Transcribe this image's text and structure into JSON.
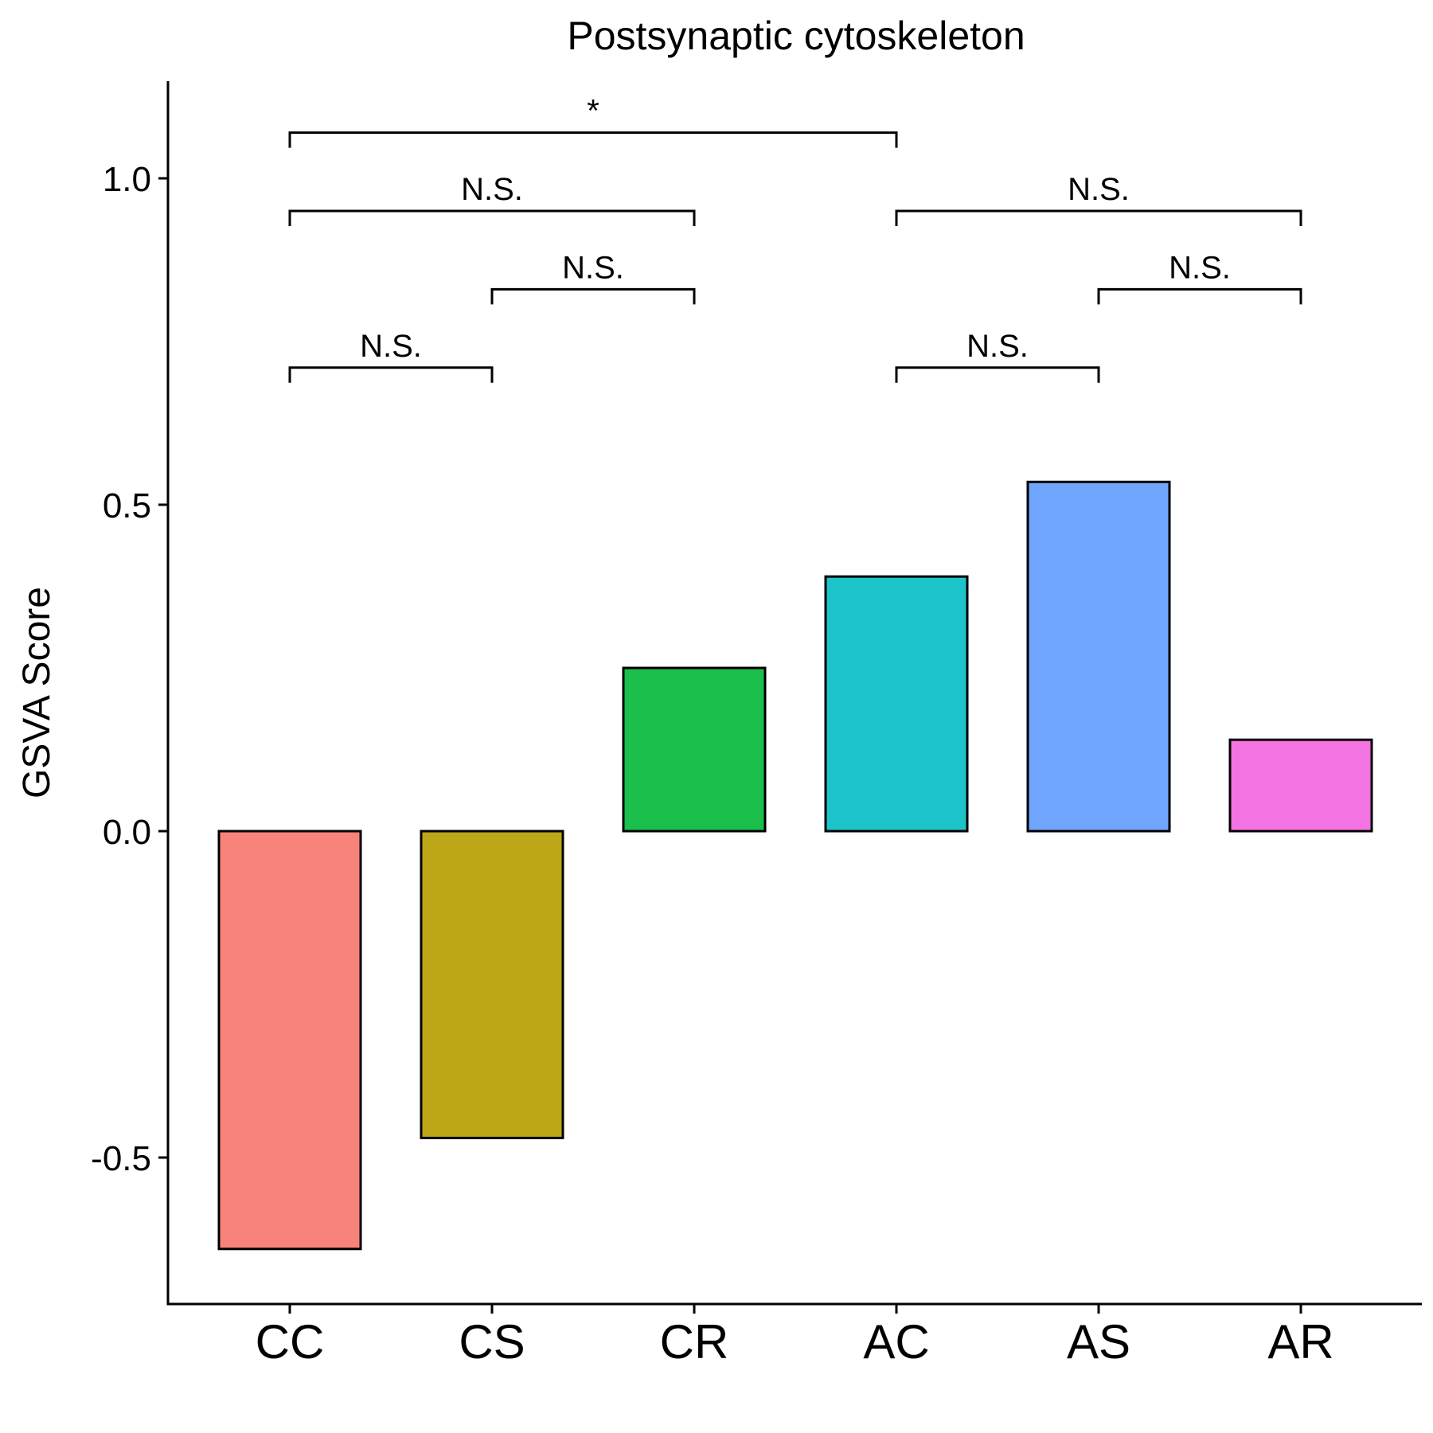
{
  "chart_data": {
    "type": "bar",
    "title": "Postsynaptic cytoskeleton",
    "xlabel": "",
    "ylabel": "GSVA Score",
    "categories": [
      "CC",
      "CS",
      "CR",
      "AC",
      "AS",
      "AR"
    ],
    "values": [
      -0.64,
      -0.47,
      0.25,
      0.39,
      0.535,
      0.14
    ],
    "colors": [
      "#F8837B",
      "#BDA719",
      "#1BBF4B",
      "#1DC4CA",
      "#70A5FD",
      "#F473E3"
    ],
    "ylim": [
      -0.72,
      1.15
    ],
    "yticks": [
      -0.5,
      0.0,
      0.5,
      1.0
    ],
    "ytick_labels": [
      "-0.5",
      "0.0",
      "0.5",
      "1.0"
    ],
    "grid": false,
    "legend": "none",
    "comparisons": [
      {
        "from": "CC",
        "to": "CS",
        "y": 0.71,
        "label": "N.S."
      },
      {
        "from": "CS",
        "to": "CR",
        "y": 0.83,
        "label": "N.S."
      },
      {
        "from": "CC",
        "to": "CR",
        "y": 0.95,
        "label": "N.S."
      },
      {
        "from": "CC",
        "to": "AC",
        "y": 1.07,
        "label": "*"
      },
      {
        "from": "AC",
        "to": "AS",
        "y": 0.71,
        "label": "N.S."
      },
      {
        "from": "AS",
        "to": "AR",
        "y": 0.83,
        "label": "N.S."
      },
      {
        "from": "AC",
        "to": "AR",
        "y": 0.95,
        "label": "N.S."
      }
    ]
  }
}
